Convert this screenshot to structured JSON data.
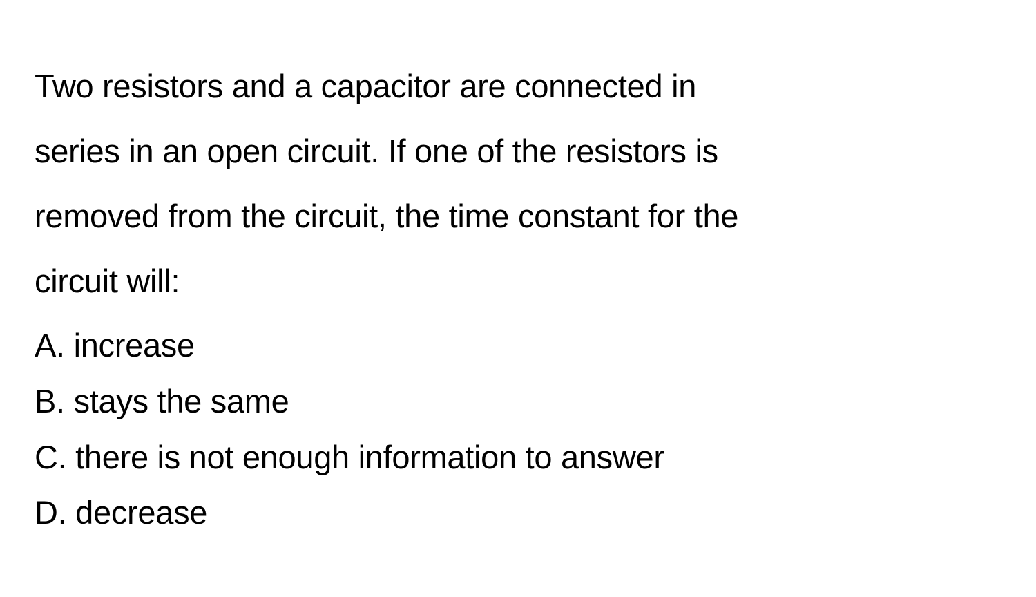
{
  "page": {
    "background_color": "#ffffff",
    "text_color": "#000000",
    "font_size_pt": 35,
    "font_family": "system-sans",
    "font_weight": 400,
    "line_height_stem": 2.0,
    "line_height_option": 1.72
  },
  "question": {
    "stem_lines": [
      "Two resistors and a capacitor are connected in",
      "series in an open circuit. If one of the resistors is",
      "removed from the circuit, the time constant for the",
      "circuit will:"
    ],
    "options": [
      {
        "label": "A.",
        "text": "increase"
      },
      {
        "label": "B.",
        "text": "stays the same"
      },
      {
        "label": "C.",
        "text": "there is not enough information to answer"
      },
      {
        "label": "D.",
        "text": "decrease"
      }
    ]
  }
}
